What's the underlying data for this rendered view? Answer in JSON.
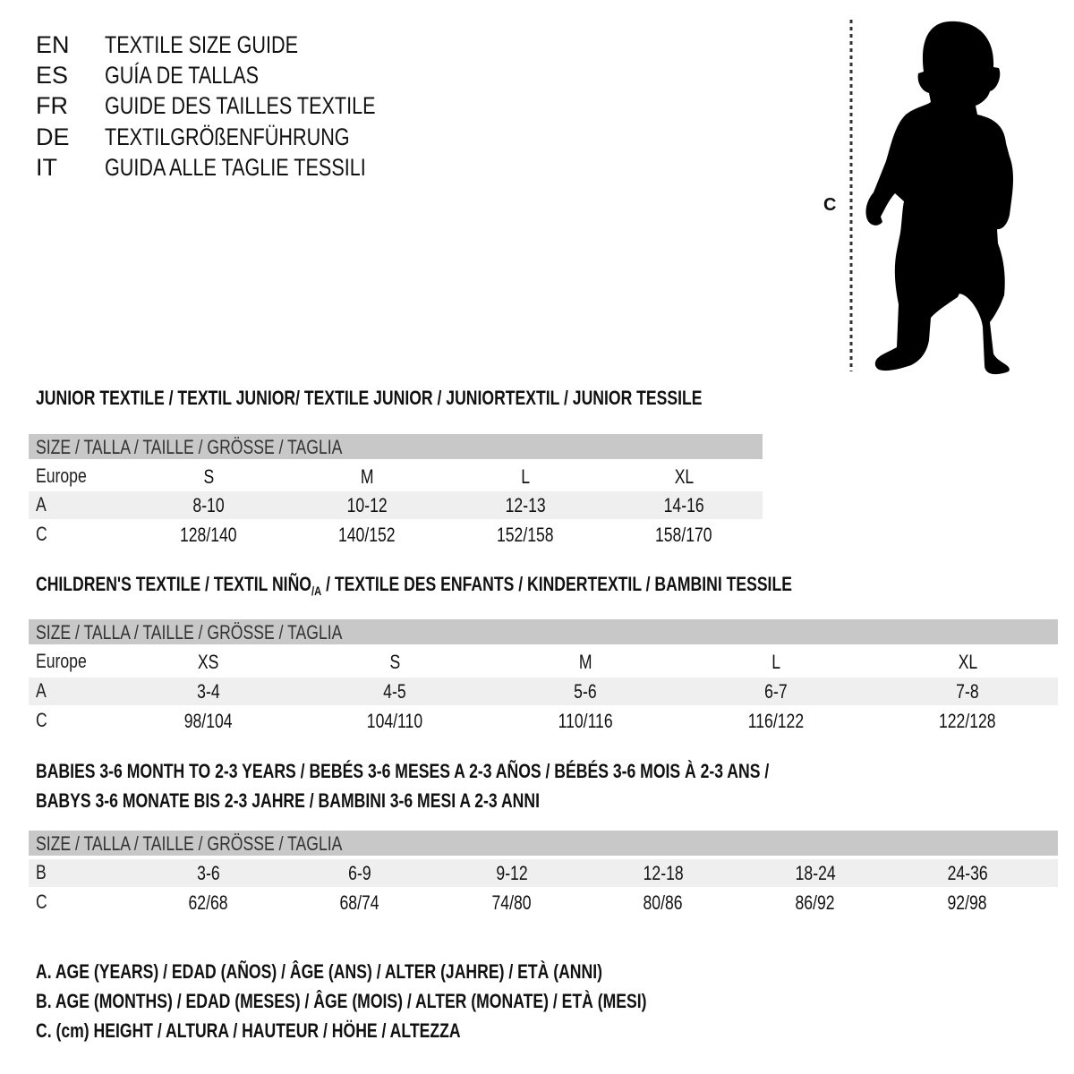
{
  "languages": [
    {
      "code": "EN",
      "title": "TEXTILE SIZE GUIDE"
    },
    {
      "code": "ES",
      "title": "GUÍA DE TALLAS"
    },
    {
      "code": "FR",
      "title": "GUIDE DES TAILLES TEXTILE"
    },
    {
      "code": "DE",
      "title": "TEXTILGRÖßENFÜHRUNG"
    },
    {
      "code": "IT",
      "title": "GUIDA ALLE TAGLIE TESSILI"
    }
  ],
  "figure": {
    "measure_label": "C"
  },
  "junior": {
    "title": "JUNIOR TEXTILE / TEXTIL JUNIOR/ TEXTILE JUNIOR / JUNIORTEXTIL / JUNIOR TESSILE",
    "header": "SIZE / TALLA / TAILLE / GRÖSSE / TAGLIA",
    "rows": [
      {
        "label": "Europe",
        "values": [
          "S",
          "M",
          "L",
          "XL"
        ]
      },
      {
        "label": "A",
        "values": [
          "8-10",
          "10-12",
          "12-13",
          "14-16"
        ]
      },
      {
        "label": "C",
        "values": [
          "128/140",
          "140/152",
          "152/158",
          "158/170"
        ]
      }
    ]
  },
  "children": {
    "title_a": "CHILDREN'S TEXTILE / TEXTIL NIÑO",
    "title_sub": "/A",
    "title_b": " / TEXTILE DES ENFANTS / KINDERTEXTIL / BAMBINI TESSILE",
    "header": "SIZE / TALLA / TAILLE / GRÖSSE / TAGLIA",
    "rows": [
      {
        "label": "Europe",
        "values": [
          "XS",
          "S",
          "M",
          "L",
          "XL"
        ]
      },
      {
        "label": "A",
        "values": [
          "3-4",
          "4-5",
          "5-6",
          "6-7",
          "7-8"
        ]
      },
      {
        "label": "C",
        "values": [
          "98/104",
          "104/110",
          "110/116",
          "116/122",
          "122/128"
        ]
      }
    ]
  },
  "babies": {
    "title_line1": "BABIES 3-6 MONTH TO 2-3 YEARS / BEBÉS 3-6 MESES A 2-3 AÑOS / BÉBÉS 3-6 MOIS À 2-3 ANS /",
    "title_line2": "BABYS 3-6 MONATE BIS 2-3 JAHRE / BAMBINI 3-6 MESI A 2-3 ANNI",
    "header": "SIZE / TALLA / TAILLE / GRÖSSE / TAGLIA",
    "rows": [
      {
        "label": "B",
        "values": [
          "3-6",
          "6-9",
          "9-12",
          "12-18",
          "18-24",
          "24-36"
        ]
      },
      {
        "label": "C",
        "values": [
          "62/68",
          "68/74",
          "74/80",
          "80/86",
          "86/92",
          "92/98"
        ]
      }
    ]
  },
  "legend": [
    "A. AGE (YEARS) / EDAD (AÑOS) / ÂGE (ANS) / ALTER (JAHRE) / ETÀ (ANNI)",
    "B. AGE (MONTHS) / EDAD (MESES) / ÂGE (MOIS) / ALTER (MONATE) / ETÀ (MESI)",
    "C. (cm) HEIGHT / ALTURA / HAUTEUR / HÖHE / ALTEZZA"
  ],
  "colors": {
    "header_row": "#c8c8c8",
    "alt_row": "#efefef",
    "text": "#111111"
  }
}
